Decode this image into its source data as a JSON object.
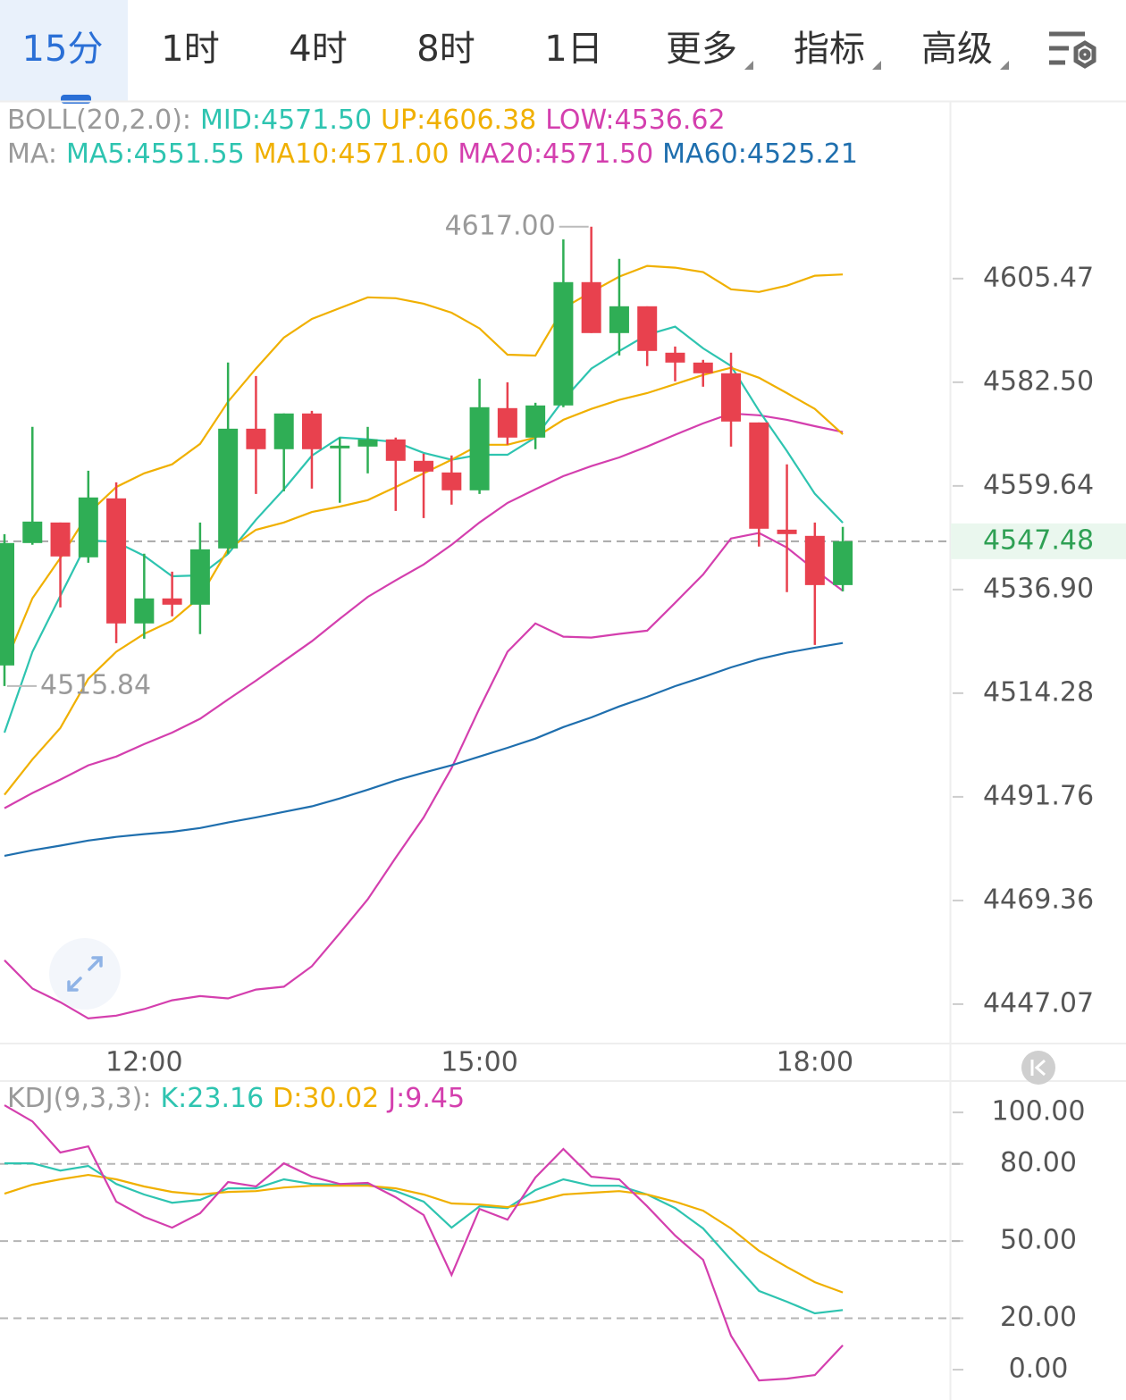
{
  "tabs": [
    "15分",
    "1时",
    "4时",
    "8时",
    "1日",
    "更多",
    "指标",
    "高级"
  ],
  "active_tab": 0,
  "chart_data": [
    {
      "type": "candlestick",
      "log_scale": true,
      "legend": [
        {
          "title": "BOLL(20,2.0):",
          "items": [
            {
              "name": "MID:",
              "value": "4571.50",
              "color": "#2ec4b0"
            },
            {
              "name": "UP:",
              "value": "4606.38",
              "color": "#f0b000"
            },
            {
              "name": "LOW:",
              "value": "4536.62",
              "color": "#d43fae"
            }
          ]
        },
        {
          "title": "MA:",
          "items": [
            {
              "name": "MA5:",
              "value": "4551.55",
              "color": "#2ec4b0"
            },
            {
              "name": "MA10:",
              "value": "4571.00",
              "color": "#f0b000"
            },
            {
              "name": "MA20:",
              "value": "4571.50",
              "color": "#d43fae"
            },
            {
              "name": "MA60:",
              "value": "4525.21",
              "color": "#1f6fae"
            }
          ]
        }
      ],
      "categories": [
        null,
        null,
        null,
        null,
        null,
        "12:00",
        null,
        null,
        null,
        null,
        null,
        null,
        null,
        null,
        null,
        null,
        null,
        "15:00",
        null,
        null,
        null,
        null,
        null,
        null,
        null,
        null,
        null,
        null,
        null,
        "18:00",
        null
      ],
      "open": [
        4520.32,
        4547.09,
        4551.6,
        4543.96,
        4556.9,
        4529.49,
        4534.96,
        4533.59,
        4545.91,
        4572.24,
        4567.72,
        4575.6,
        4567.9,
        4568.3,
        4569.88,
        4565.16,
        4562.6,
        4558.67,
        4576.78,
        4570.28,
        4577.37,
        4604.68,
        4593.38,
        4599.32,
        4589.03,
        4586.85,
        4584.48,
        4573.62,
        4550.03,
        4548.66,
        4537.88
      ],
      "close": [
        4547.09,
        4551.8,
        4544.15,
        4557.1,
        4529.49,
        4534.96,
        4533.59,
        4545.71,
        4572.24,
        4567.72,
        4575.6,
        4567.72,
        4568.5,
        4569.88,
        4565.16,
        4562.79,
        4558.67,
        4576.98,
        4570.28,
        4577.37,
        4604.68,
        4593.38,
        4599.32,
        4589.42,
        4586.85,
        4584.48,
        4573.82,
        4550.23,
        4549.05,
        4537.88,
        4547.48
      ],
      "high": [
        4549.05,
        4572.64,
        4551.6,
        4562.99,
        4560.43,
        4544.74,
        4540.82,
        4551.6,
        4586.85,
        4583.88,
        4575.6,
        4576.18,
        4570.28,
        4572.64,
        4570.28,
        4566.72,
        4566.34,
        4583.29,
        4582.5,
        4577.96,
        4614.21,
        4617.0,
        4609.84,
        4599.32,
        4590.4,
        4587.45,
        4589.03,
        4573.62,
        4564.37,
        4551.6,
        4550.62
      ],
      "low": [
        4515.84,
        4546.7,
        4533.0,
        4542.78,
        4525.19,
        4526.17,
        4531.05,
        4527.15,
        4544.74,
        4557.88,
        4558.47,
        4559.06,
        4555.92,
        4562.4,
        4554.15,
        4552.58,
        4555.52,
        4557.88,
        4568.7,
        4567.72,
        4576.98,
        4593.38,
        4588.43,
        4586.06,
        4582.7,
        4581.51,
        4568.3,
        4546.31,
        4536.33,
        4524.8,
        4536.51
      ],
      "up_color": "#2fae55",
      "down_color": "#e8414e",
      "series": [
        {
          "color": "#f0b000",
          "values": [
            4520.3,
            4535.0,
            4543.8,
            4553.6,
            4559.4,
            4562.4,
            4564.4,
            4568.9,
            4578.2,
            4585.5,
            4592.4,
            4596.5,
            4598.9,
            4601.3,
            4601.1,
            4599.9,
            4597.9,
            4594.4,
            4588.6,
            4588.4,
            4598.9,
            4602.5,
            4605.9,
            4608.3,
            4607.9,
            4606.9,
            4603.1,
            4602.5,
            4603.9,
            4606.1,
            4606.38
          ]
        },
        {
          "color": "#d43fae",
          "values": [
            4489.3,
            4492.6,
            4495.5,
            4498.6,
            4500.5,
            4503.2,
            4505.7,
            4508.7,
            4512.9,
            4517.0,
            4521.3,
            4525.6,
            4530.5,
            4535.3,
            4538.9,
            4542.4,
            4546.7,
            4551.6,
            4555.9,
            4558.9,
            4561.8,
            4564.0,
            4565.9,
            4568.3,
            4570.9,
            4573.4,
            4575.6,
            4575.2,
            4574.2,
            4572.8,
            4571.5
          ]
        },
        {
          "color": "#d43fae",
          "values": [
            4456.5,
            4450.4,
            4447.5,
            4444.0,
            4444.6,
            4446.0,
            4447.9,
            4448.8,
            4448.3,
            4450.2,
            4450.8,
            4455.2,
            4462.3,
            4469.6,
            4478.6,
            4487.3,
            4498.0,
            4511.0,
            4523.3,
            4529.5,
            4526.6,
            4526.4,
            4527.2,
            4527.9,
            4534.0,
            4540.2,
            4548.1,
            4549.3,
            4546.1,
            4541.2,
            4536.62
          ]
        },
        {
          "color": "#2ec4b0",
          "values": [
            4505.7,
            4523.3,
            4535.5,
            4547.7,
            4547.3,
            4544.3,
            4539.8,
            4540.0,
            4544.7,
            4552.2,
            4558.9,
            4566.3,
            4570.3,
            4569.9,
            4569.3,
            4566.9,
            4565.4,
            4566.5,
            4566.5,
            4570.3,
            4578.6,
            4585.5,
            4589.4,
            4593.0,
            4594.8,
            4590.0,
            4586.1,
            4576.2,
            4567.3,
            4557.9,
            4551.55
          ]
        },
        {
          "color": "#f0b000",
          "values": [
            4492.2,
            4499.9,
            4506.7,
            4517.4,
            4523.3,
            4527.2,
            4530.1,
            4535.3,
            4545.7,
            4550.0,
            4551.6,
            4553.9,
            4555.1,
            4556.5,
            4559.4,
            4562.4,
            4565.4,
            4568.7,
            4568.7,
            4570.3,
            4574.2,
            4576.6,
            4578.6,
            4580.1,
            4582.1,
            4584.1,
            4585.7,
            4583.5,
            4580.1,
            4576.6,
            4571.0
          ]
        },
        {
          "color": "#1f6fae",
          "values": [
            4479.0,
            4480.2,
            4481.2,
            4482.3,
            4483.1,
            4483.7,
            4484.2,
            4485.0,
            4486.2,
            4487.3,
            4488.5,
            4489.7,
            4491.4,
            4493.3,
            4495.3,
            4497.0,
            4498.6,
            4500.5,
            4502.4,
            4504.4,
            4506.9,
            4509.0,
            4511.4,
            4513.5,
            4515.8,
            4517.8,
            4519.9,
            4521.7,
            4523.1,
            4524.2,
            4525.21
          ]
        }
      ],
      "ylim": [
        4439.2,
        4644.7
      ],
      "yticks": [
        4605.47,
        {
          "value": 4582.5,
          "label": "4582.50"
        },
        4559.64,
        {
          "value": 4536.9,
          "label": "4536.90"
        },
        4514.28,
        4491.76,
        4469.36,
        4447.07
      ],
      "current_price": 4547.48,
      "high_label": {
        "value": 4617,
        "label": "4617.00"
      },
      "low_label": 4515.84
    },
    {
      "type": "line",
      "log_scale": false,
      "legend": [
        {
          "title": "KDJ(9,3,3):",
          "items": [
            {
              "name": "K:",
              "value": "23.16",
              "color": "#2ec4b0"
            },
            {
              "name": "D:",
              "value": "30.02",
              "color": "#f0b000"
            },
            {
              "name": "J:",
              "value": "9.45",
              "color": "#d43fae"
            }
          ]
        }
      ],
      "series": [
        {
          "color": "#2ec4b0",
          "values": [
            80.2,
            80.2,
            77.4,
            79.2,
            72.2,
            68.1,
            64.9,
            66.0,
            70.5,
            70.5,
            74.0,
            72.2,
            71.9,
            71.9,
            69.4,
            65.3,
            55.2,
            63.5,
            62.8,
            69.8,
            74.0,
            71.5,
            71.5,
            68.1,
            62.8,
            54.9,
            42.7,
            30.6,
            26.4,
            21.9,
            23.16
          ]
        },
        {
          "color": "#f0b000",
          "values": [
            68.4,
            71.9,
            74.0,
            75.7,
            74.0,
            71.2,
            69.1,
            68.1,
            69.1,
            69.4,
            70.8,
            71.5,
            71.5,
            71.5,
            70.5,
            68.1,
            64.6,
            64.2,
            63.2,
            65.3,
            68.1,
            68.8,
            69.4,
            68.1,
            65.3,
            61.8,
            54.9,
            46.2,
            39.9,
            34.0,
            30.02
          ]
        },
        {
          "color": "#d43fae",
          "values": [
            102.8,
            96.5,
            84.4,
            86.8,
            65.3,
            59.4,
            55.2,
            60.8,
            72.9,
            71.2,
            80.2,
            75.0,
            72.2,
            72.6,
            67.0,
            60.1,
            36.8,
            62.5,
            58.3,
            74.7,
            85.8,
            75.0,
            74.0,
            63.5,
            52.1,
            42.7,
            13.2,
            -4.2,
            -3.5,
            -2.1,
            9.45
          ]
        }
      ],
      "ylim": [
        -11.8,
        112.2
      ],
      "yticks": [
        {
          "value": 100,
          "label": "100.00"
        },
        {
          "value": 80,
          "label": "80.00"
        },
        {
          "value": 50,
          "label": "50.00"
        },
        {
          "value": 20,
          "label": "20.00"
        },
        {
          "value": 0,
          "label": "0.00"
        }
      ]
    }
  ]
}
